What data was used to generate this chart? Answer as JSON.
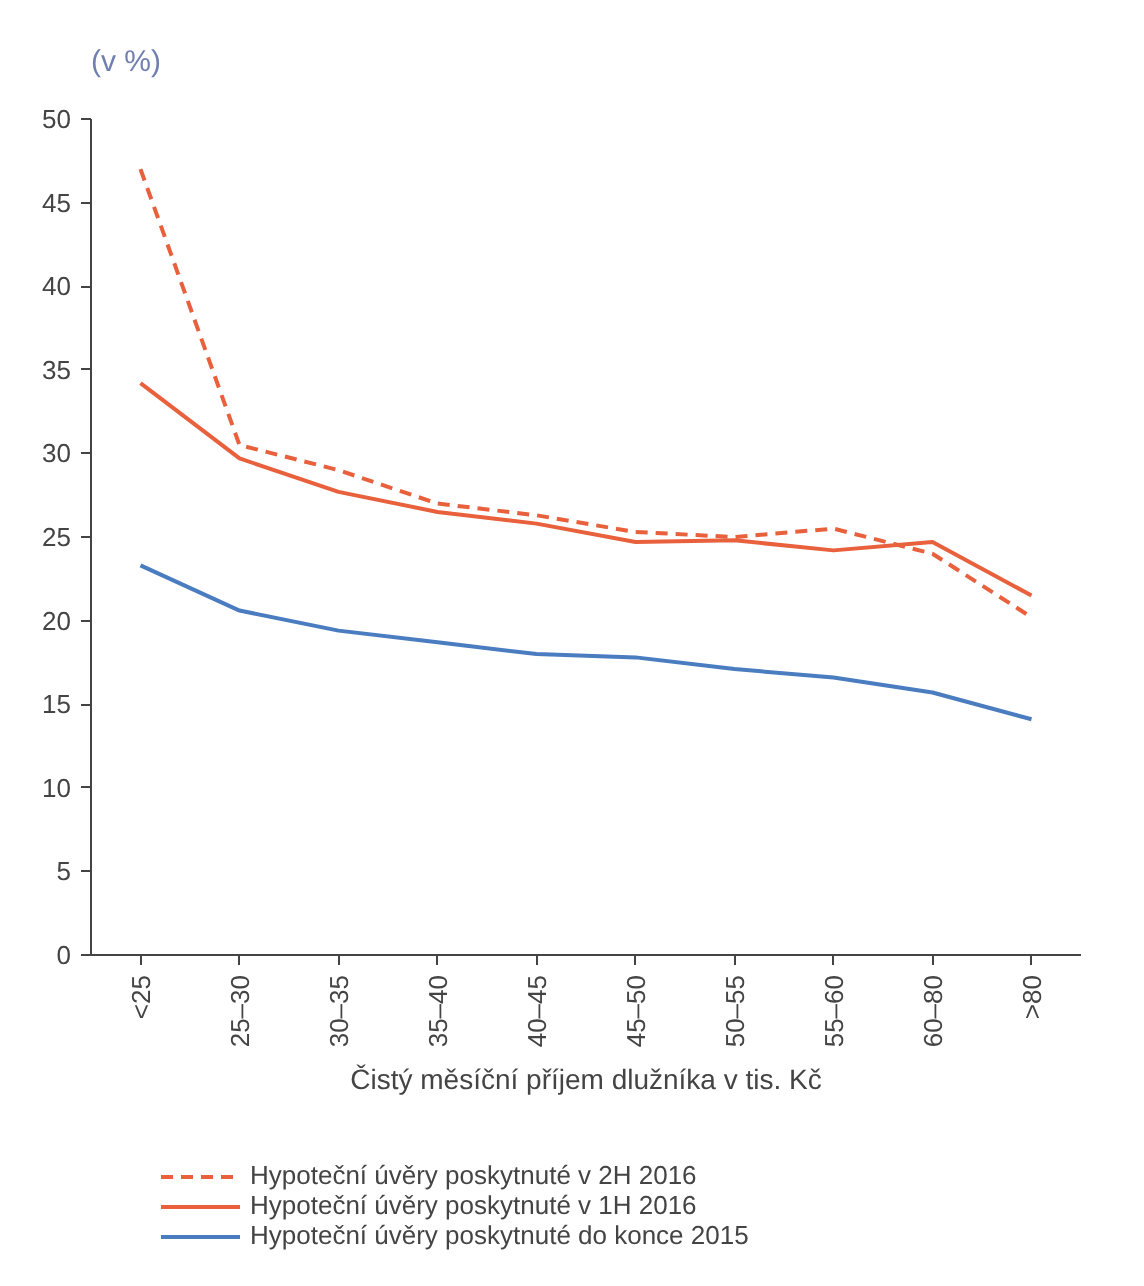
{
  "chart_data": {
    "type": "line",
    "ylabel": "(v %)",
    "xlabel": "Čistý měsíční příjem dlužníka v tis. Kč",
    "categories": [
      "<25",
      "25–30",
      "30–35",
      "35–40",
      "40–45",
      "45–50",
      "50–55",
      "55–60",
      "60–80",
      ">80"
    ],
    "ylim": [
      0,
      50
    ],
    "yticks": [
      0,
      5,
      10,
      15,
      20,
      25,
      30,
      35,
      40,
      45,
      50
    ],
    "grid": false,
    "legend": "bottom",
    "marker": "none",
    "series": [
      {
        "name": "Hypoteční úvěry poskytnuté v 2H 2016",
        "color": "#e8603c",
        "line_style": "dashed",
        "values": [
          47,
          30.5,
          29,
          27,
          26.3,
          25.3,
          25,
          25.5,
          24,
          20.2
        ]
      },
      {
        "name": "Hypoteční úvěry poskytnuté v 1H 2016",
        "color": "#e8603c",
        "line_style": "solid",
        "values": [
          34.2,
          29.7,
          27.7,
          26.5,
          25.8,
          24.7,
          24.8,
          24.2,
          24.7,
          21.5
        ]
      },
      {
        "name": "Hypoteční úvěry poskytnuté do konce 2015",
        "color": "#4a7cc0",
        "line_style": "solid",
        "values": [
          23.3,
          20.6,
          19.4,
          18.7,
          18.0,
          17.8,
          17.1,
          16.6,
          15.7,
          14.1
        ]
      }
    ]
  }
}
